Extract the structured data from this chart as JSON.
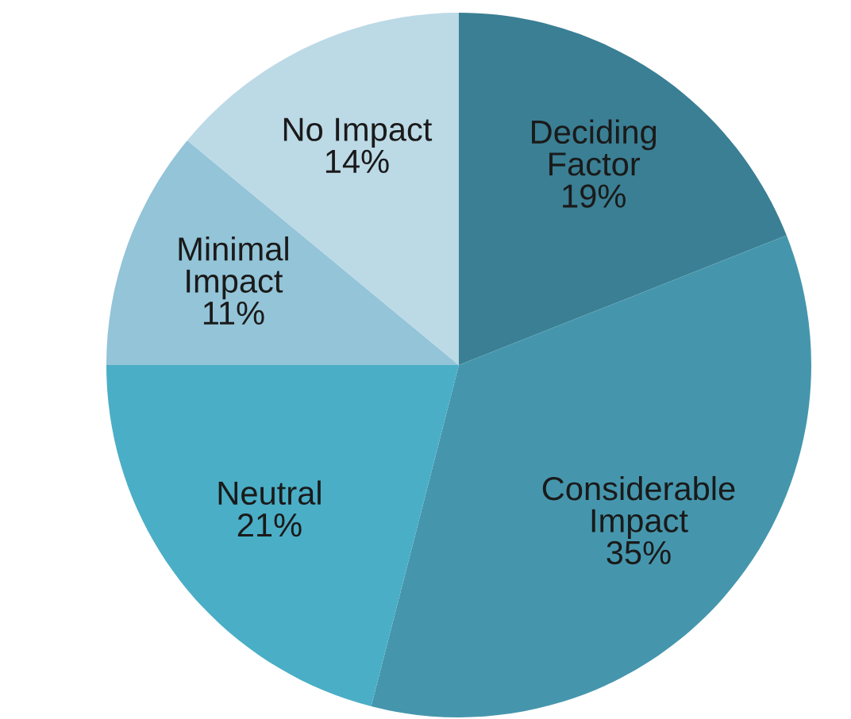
{
  "chart_data": {
    "type": "pie",
    "categories": [
      "Deciding\nFactor",
      "Considerable\nImpact",
      "Neutral",
      "Minimal\nImpact",
      "No Impact"
    ],
    "values": [
      19,
      35,
      21,
      11,
      14
    ],
    "value_labels": [
      "19%",
      "35%",
      "21%",
      "11%",
      "14%"
    ],
    "colors": [
      "#3a7f94",
      "#4596ad",
      "#4aaec6",
      "#93c4d8",
      "#bcd9e6"
    ]
  }
}
